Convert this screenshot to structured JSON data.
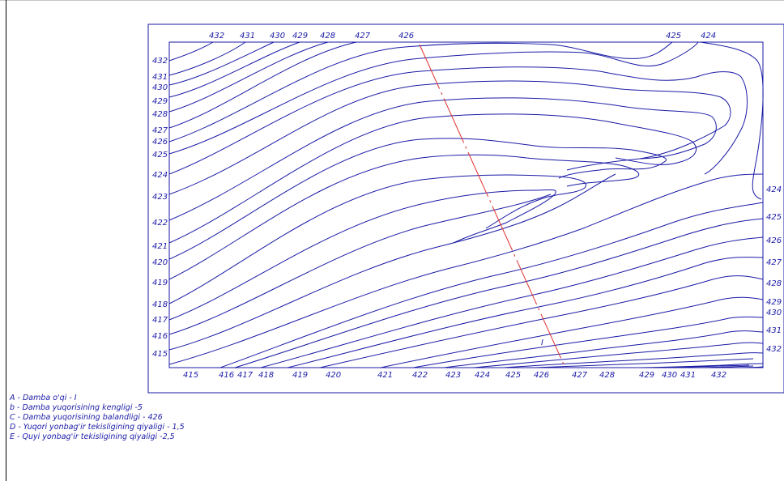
{
  "map": {
    "top_labels": [
      "432",
      "431",
      "430",
      "429",
      "428",
      "427",
      "426",
      "425",
      "424"
    ],
    "left_labels": [
      "432",
      "431",
      "430",
      "429",
      "428",
      "427",
      "426",
      "425",
      "424",
      "423",
      "422",
      "421",
      "420",
      "419",
      "418",
      "417",
      "416",
      "415"
    ],
    "bottom_labels": [
      "415",
      "416",
      "417",
      "418",
      "419",
      "420",
      "421",
      "422",
      "423",
      "424",
      "425",
      "426",
      "427",
      "428",
      "429",
      "430",
      "431",
      "432"
    ],
    "right_labels": [
      "424",
      "425",
      "426",
      "427",
      "428",
      "429",
      "430",
      "431",
      "432"
    ],
    "axis_marker": "I",
    "contour_color": "#1a1aa6",
    "axis_color": "#e03030"
  },
  "legend": [
    "A - Damba o'qi - I",
    "b - Damba yuqorisining kengligi -5",
    "C - Damba yuqorisining balandligi - 426",
    "D - Yuqori yonbag'ir tekisligining qiyaligi - 1,5",
    "E - Quyi yonbag'ir tekisligining qiyaligi -2,5"
  ]
}
